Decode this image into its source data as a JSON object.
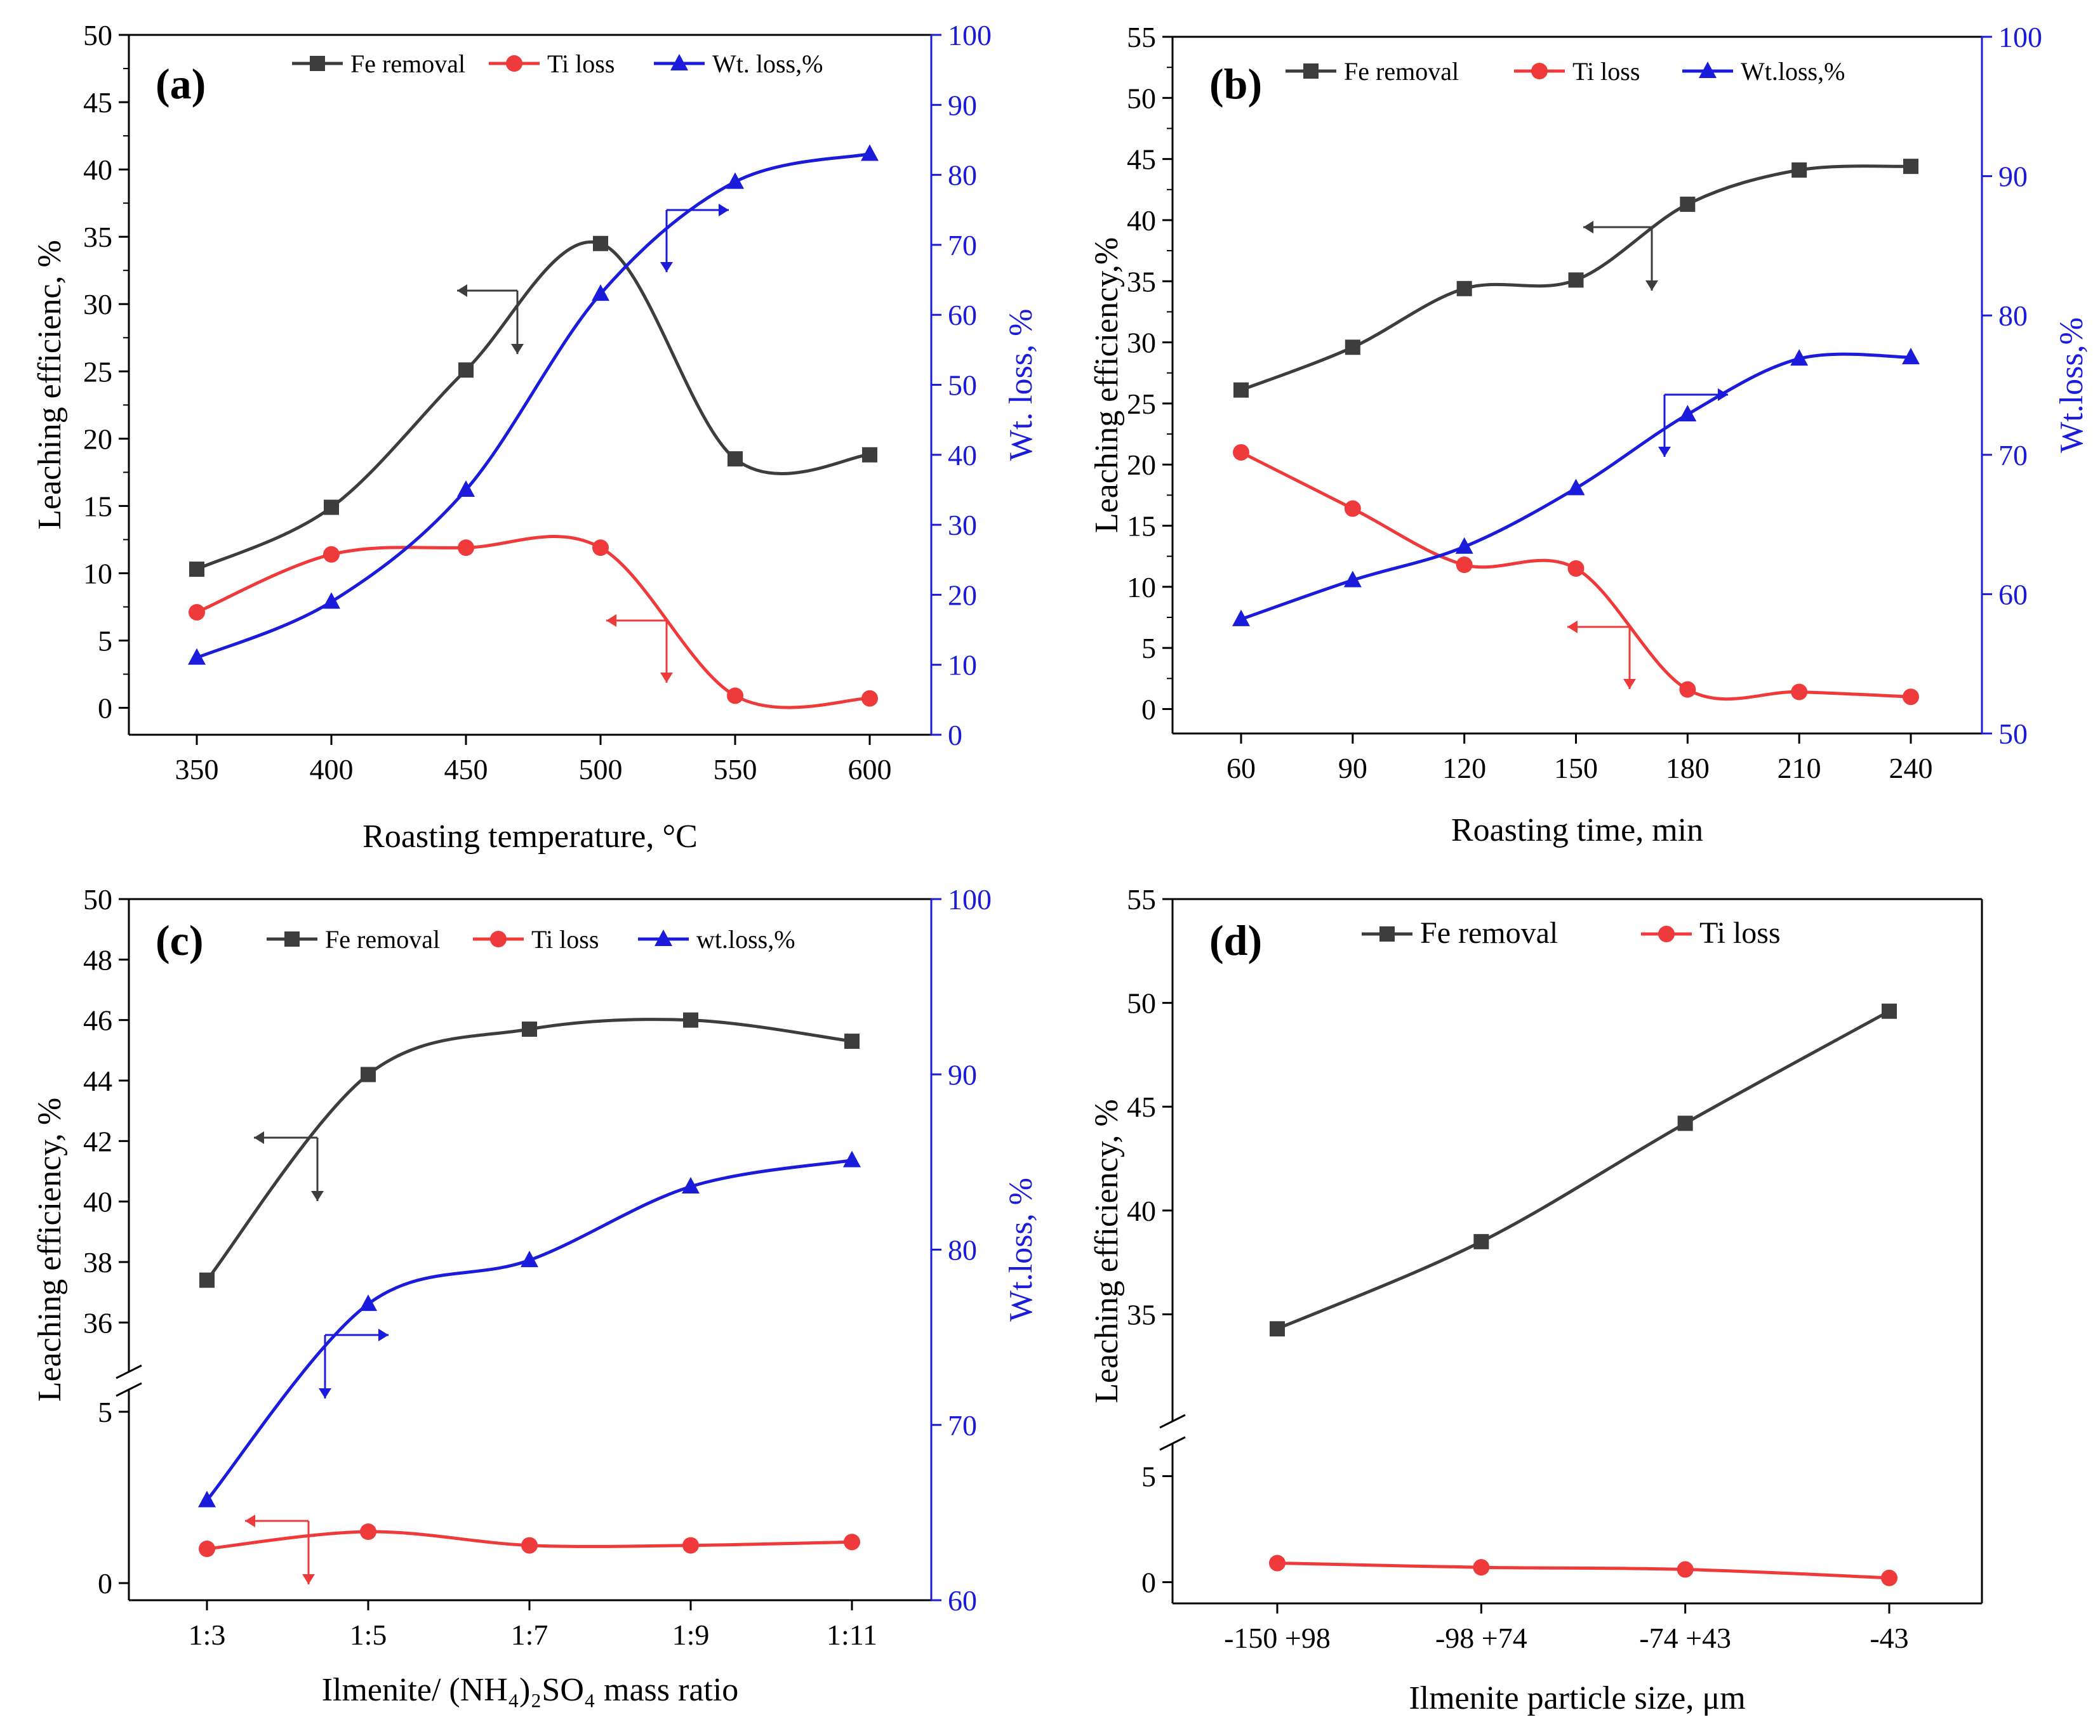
{
  "colors": {
    "black": "#3d3d3d",
    "red": "#ee3a3a",
    "blue": "#1b1bdb",
    "axis": "#000000"
  },
  "chart_data": [
    {
      "id": "a",
      "type": "line",
      "panel_label": "(a)",
      "xlabel": "Roasting temperature, °C",
      "ylabel": "Leaching efficienc, %",
      "ylabel2": "Wt. loss, %",
      "categories": [
        "350",
        "400",
        "450",
        "500",
        "550",
        "600"
      ],
      "ylim": [
        -2,
        50
      ],
      "yticks": [
        0,
        5,
        10,
        15,
        20,
        25,
        30,
        35,
        40,
        45,
        50
      ],
      "y2lim": [
        0,
        100
      ],
      "y2ticks": [
        0,
        10,
        20,
        30,
        40,
        50,
        60,
        70,
        80,
        90,
        100
      ],
      "series": [
        {
          "name": "Fe removal",
          "color": "black",
          "marker": "square",
          "axis": "left",
          "values": [
            10.3,
            14.9,
            25.1,
            34.5,
            18.5,
            18.8
          ]
        },
        {
          "name": "Ti loss",
          "color": "red",
          "marker": "circle",
          "axis": "left",
          "values": [
            7.1,
            11.4,
            11.9,
            11.9,
            0.9,
            0.7
          ]
        },
        {
          "name": "Wt. loss,%",
          "color": "blue",
          "marker": "triangle",
          "axis": "right",
          "values": [
            11,
            19,
            35,
            63,
            79,
            83
          ]
        }
      ],
      "legend": "top"
    },
    {
      "id": "b",
      "type": "line",
      "panel_label": "(b)",
      "xlabel": "Roasting time, min",
      "ylabel": "Leaching efficiency,%",
      "ylabel2": "Wt.loss,%",
      "categories": [
        "60",
        "90",
        "120",
        "150",
        "180",
        "210",
        "240"
      ],
      "ylim": [
        -2,
        55
      ],
      "yticks": [
        0,
        5,
        10,
        15,
        20,
        25,
        30,
        35,
        40,
        45,
        50,
        55
      ],
      "y2lim": [
        50,
        100
      ],
      "y2ticks": [
        50,
        60,
        70,
        80,
        90,
        100
      ],
      "series": [
        {
          "name": "Fe removal",
          "color": "black",
          "marker": "square",
          "axis": "left",
          "values": [
            26.1,
            29.6,
            34.4,
            35.1,
            41.3,
            44.1,
            44.4
          ]
        },
        {
          "name": "Ti loss",
          "color": "red",
          "marker": "circle",
          "axis": "left",
          "values": [
            21.0,
            16.4,
            11.8,
            11.5,
            1.6,
            1.4,
            1.0
          ]
        },
        {
          "name": "Wt.loss,%",
          "color": "blue",
          "marker": "triangle",
          "axis": "right",
          "values": [
            58.2,
            61.0,
            63.4,
            67.6,
            72.9,
            76.9,
            77.0
          ]
        }
      ],
      "legend": "top"
    },
    {
      "id": "c",
      "type": "line",
      "panel_label": "(c)",
      "xlabel": "Ilmenite/ (NH₄)₂SO₄ mass ratio",
      "ylabel": "Leaching efficiency, %",
      "ylabel2": "Wt.loss, %",
      "categories": [
        "1:3",
        "1:5",
        "1:7",
        "1:9",
        "1:11"
      ],
      "broken_axis": {
        "lower": [
          -0.5,
          5
        ],
        "upper": [
          35,
          50
        ]
      },
      "yticks_lower": [
        0,
        5
      ],
      "yticks_upper": [
        36,
        38,
        40,
        42,
        44,
        46,
        48,
        50
      ],
      "y2lim": [
        60,
        100
      ],
      "y2ticks": [
        60,
        70,
        80,
        90,
        100
      ],
      "series": [
        {
          "name": "Fe removal",
          "color": "black",
          "marker": "square",
          "axis": "left",
          "values": [
            37.4,
            44.2,
            45.7,
            46.0,
            45.3
          ]
        },
        {
          "name": "Ti loss",
          "color": "red",
          "marker": "circle",
          "axis": "left",
          "values": [
            1.0,
            1.5,
            1.1,
            1.1,
            1.2
          ]
        },
        {
          "name": "wt.loss,%",
          "color": "blue",
          "marker": "triangle",
          "axis": "right",
          "values": [
            65.7,
            76.9,
            79.4,
            83.6,
            85.1
          ]
        }
      ],
      "legend": "top"
    },
    {
      "id": "d",
      "type": "line",
      "panel_label": "(d)",
      "xlabel": "Ilmenite particle size, μm",
      "ylabel": "Leaching efficiency, %",
      "categories": [
        "-150 +98",
        "-98 +74",
        "-74 +43",
        "-43"
      ],
      "broken_axis": {
        "lower": [
          -1,
          6
        ],
        "upper": [
          30,
          55
        ]
      },
      "yticks_lower": [
        0,
        5
      ],
      "yticks_upper": [
        35,
        40,
        45,
        50,
        55
      ],
      "series": [
        {
          "name": "Fe removal",
          "color": "black",
          "marker": "square",
          "axis": "left",
          "values": [
            34.3,
            38.5,
            44.2,
            49.6
          ]
        },
        {
          "name": "Ti loss",
          "color": "red",
          "marker": "circle",
          "axis": "left",
          "values": [
            0.9,
            0.7,
            0.6,
            0.2
          ]
        }
      ],
      "legend": "top"
    }
  ]
}
